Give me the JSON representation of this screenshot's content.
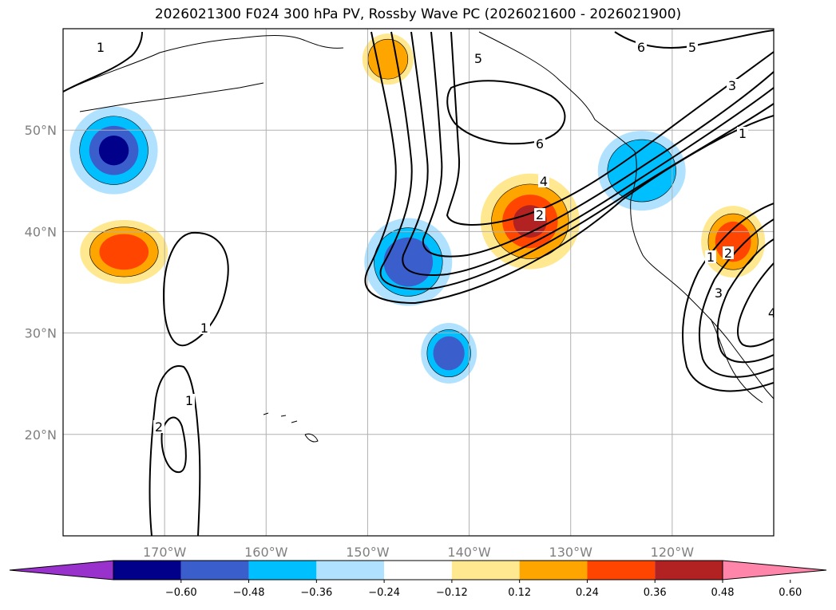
{
  "title": "2026021300 F024 300 hPa PV, Rossby Wave PC (2026021600 - 2026021900)",
  "chart_data": {
    "type": "map-contour",
    "title": "2026021300 F024 300 hPa PV, Rossby Wave PC (2026021600 - 2026021900)",
    "lon_range": [
      180,
      110
    ],
    "lat_range": [
      10,
      60
    ],
    "x_ticks": [
      "170°W",
      "160°W",
      "150°W",
      "140°W",
      "130°W",
      "120°W"
    ],
    "x_tick_values": [
      170,
      160,
      150,
      140,
      130,
      120
    ],
    "y_ticks": [
      "20°N",
      "30°N",
      "40°N",
      "50°N"
    ],
    "y_tick_values": [
      20,
      30,
      40,
      50
    ],
    "grid": true,
    "colorbar": {
      "levels": [
        -0.6,
        -0.48,
        -0.36,
        -0.24,
        -0.12,
        0.12,
        0.24,
        0.36,
        0.48,
        0.6
      ],
      "tick_labels": [
        "−0.60",
        "−0.48",
        "−0.36",
        "−0.24",
        "−0.12",
        "0.12",
        "0.24",
        "0.36",
        "0.48",
        "0.60"
      ],
      "colors": [
        "#9932cc",
        "#00008b",
        "#3a5fcd",
        "#00bfff",
        "#b0e2ff",
        "#ffffff",
        "#ffe88f",
        "#ffa500",
        "#ff4500",
        "#b22222",
        "#ff85aa"
      ],
      "extend": "both"
    },
    "contour_labels": [
      "1",
      "5",
      "6",
      "5",
      "3",
      "1",
      "6",
      "4",
      "2",
      "1",
      "2",
      "3",
      "4",
      "1",
      "1",
      "2"
    ],
    "anomalies": [
      {
        "name": "positive-core-north-pacific-trough",
        "lon": -134,
        "lat": 41,
        "value": 0.55
      },
      {
        "name": "negative-core-west-of-trough",
        "lon": -146,
        "lat": 37,
        "value": -0.4
      },
      {
        "name": "negative-core-pacific-northwest",
        "lon": -123,
        "lat": 46,
        "value": -0.32
      },
      {
        "name": "negative-core-dateline",
        "lon": -175,
        "lat": 48,
        "value": -0.55
      },
      {
        "name": "positive-core-dateline",
        "lon": -174,
        "lat": 38,
        "value": 0.42
      },
      {
        "name": "positive-core-great-basin",
        "lon": -114,
        "lat": 39,
        "value": 0.44
      },
      {
        "name": "negative-core-subtropics",
        "lon": -142,
        "lat": 28,
        "value": -0.4
      },
      {
        "name": "positive-core-gulf-of-alaska",
        "lon": -148,
        "lat": 57,
        "value": 0.3
      }
    ]
  }
}
